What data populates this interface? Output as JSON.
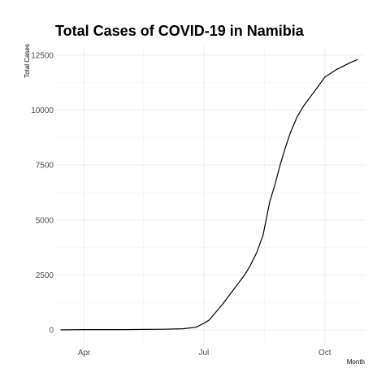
{
  "chart_data": {
    "type": "line",
    "title": "Total Cases of COVID-19 in Namibia",
    "xlabel": "Month",
    "ylabel": "Total Cases",
    "x_ticks": [
      "Apr",
      "Jul",
      "Oct"
    ],
    "y_ticks": [
      0,
      2500,
      5000,
      7500,
      10000,
      12500
    ],
    "ylim": [
      -700,
      12900
    ],
    "xlim": [
      "2020-03-10",
      "2020-11-01"
    ],
    "grid": true,
    "legend": "none",
    "line_color": "#000000",
    "series": [
      {
        "x": [
          "2020-03-14",
          "2020-04-01",
          "2020-05-01",
          "2020-06-01",
          "2020-06-15",
          "2020-06-25",
          "2020-07-01",
          "2020-07-05",
          "2020-07-10",
          "2020-07-15",
          "2020-07-20",
          "2020-07-25",
          "2020-08-01",
          "2020-08-05",
          "2020-08-10",
          "2020-08-15",
          "2020-08-20",
          "2020-08-24",
          "2020-08-28",
          "2020-09-01",
          "2020-09-05",
          "2020-09-10",
          "2020-09-15",
          "2020-09-20",
          "2020-09-25",
          "2020-10-01",
          "2020-10-05",
          "2020-10-10",
          "2020-10-15",
          "2020-10-20",
          "2020-10-26"
        ],
        "y": [
          2,
          16,
          18,
          30,
          55,
          120,
          300,
          450,
          800,
          1150,
          1550,
          1950,
          2500,
          2900,
          3500,
          4300,
          5800,
          6600,
          7500,
          8300,
          9000,
          9700,
          10200,
          10600,
          11000,
          11500,
          11650,
          11850,
          12000,
          12150,
          12300
        ]
      }
    ]
  },
  "colors": {
    "background": "#ffffff",
    "grid_major": "#ebebeb",
    "grid_minor": "#f4f4f4",
    "line": "#000000",
    "tick_text": "#4d4d4d"
  }
}
